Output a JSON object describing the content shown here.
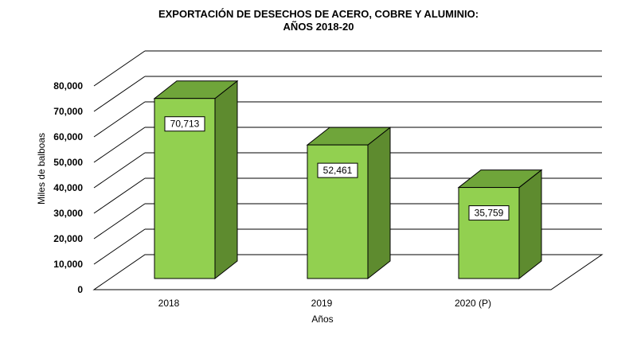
{
  "chart_data": {
    "type": "bar",
    "title": "EXPORTACIÓN  DE  DESECHOS  DE  ACERO,  COBRE  Y  ALUMINIO:",
    "subtitle": "AÑOS 2018-20",
    "xlabel": "Años",
    "ylabel": "Miles de balboas",
    "categories": [
      "2018",
      "2019",
      "2020 (P)"
    ],
    "values": [
      70713,
      52461,
      35759
    ],
    "data_labels": [
      "70,713",
      "52,461",
      "35,759"
    ],
    "ylim": [
      0,
      80000
    ],
    "y_ticks": [
      0,
      10000,
      20000,
      30000,
      40000,
      50000,
      60000,
      70000,
      80000
    ],
    "y_tick_labels": [
      "0",
      "10,000",
      "20,000",
      "30,000",
      "40,000",
      "50,000",
      "60,000",
      "70,000",
      "80,000"
    ],
    "grid": true,
    "legend": "none",
    "colors": {
      "bar_front": "#92d050",
      "bar_side": "#5e8b2f",
      "bar_top": "#6fa53a",
      "grid": "#000000"
    }
  }
}
